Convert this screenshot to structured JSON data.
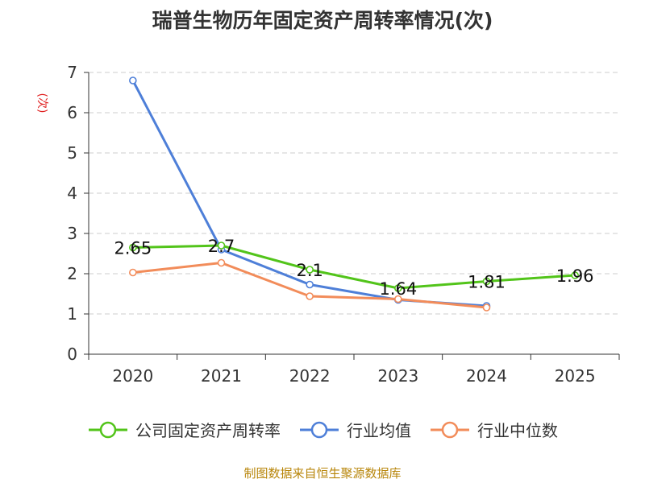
{
  "chart_data": {
    "type": "line",
    "title": "瑞普生物历年固定资产周转率情况(次)",
    "ylabel": "(次)",
    "xlabel": "",
    "categories": [
      "2020",
      "2021",
      "2022",
      "2023",
      "2024",
      "2025"
    ],
    "ylim": [
      0,
      7
    ],
    "yticks": [
      0,
      1,
      2,
      3,
      4,
      5,
      6,
      7
    ],
    "grid": true,
    "legend_position": "bottom",
    "series": [
      {
        "name": "公司固定资产周转率",
        "color": "#52c41a",
        "values": [
          2.65,
          2.7,
          2.1,
          1.64,
          1.81,
          1.96
        ],
        "labels": [
          "2.65",
          "2.7",
          "2.1",
          "1.64",
          "1.81",
          "1.96"
        ]
      },
      {
        "name": "行业均值",
        "color": "#4e7fd8",
        "values": [
          6.8,
          2.6,
          1.73,
          1.35,
          1.2,
          null
        ]
      },
      {
        "name": "行业中位数",
        "color": "#f28c5a",
        "values": [
          2.03,
          2.27,
          1.44,
          1.37,
          1.16,
          null
        ]
      }
    ]
  },
  "source": "制图数据来自恒生聚源数据库"
}
